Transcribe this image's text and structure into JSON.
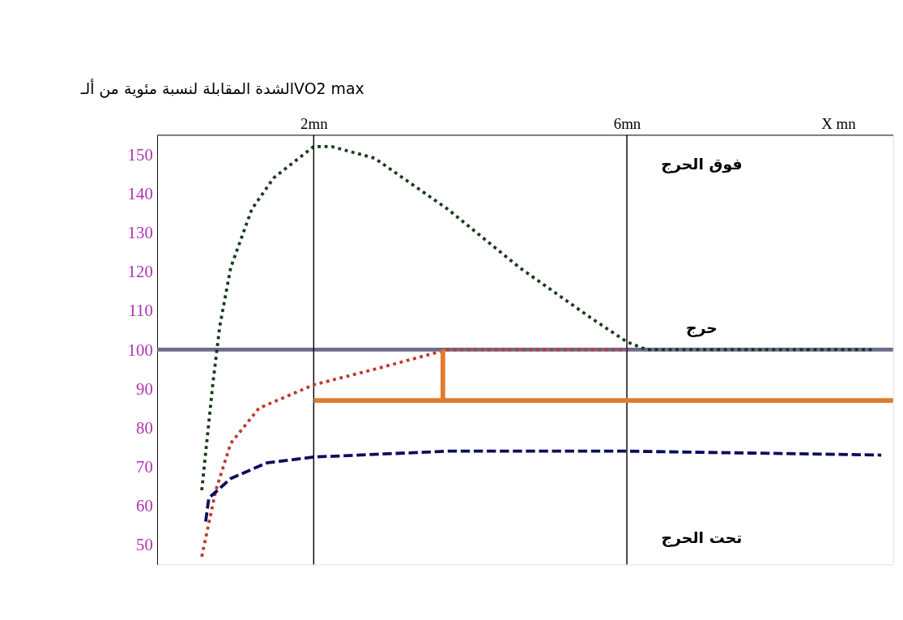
{
  "chart_data": {
    "type": "line",
    "ylabel": "الشدة المقابلة لنسبة مئوية من ألـVO2 max",
    "xlim": [
      0,
      9.4
    ],
    "xticks": [
      {
        "value": 2,
        "label": "2mn"
      },
      {
        "value": 6,
        "label": "6mn"
      },
      {
        "value": 8.7,
        "label": "X mn"
      }
    ],
    "ylim": [
      45,
      155
    ],
    "yticks": [
      50,
      60,
      70,
      80,
      90,
      100,
      110,
      120,
      130,
      140,
      150
    ],
    "grid": false,
    "series": [
      {
        "color": "#1a3a1a",
        "line_style": "dotted",
        "x": [
          0.57,
          0.71,
          0.8,
          0.94,
          1.21,
          1.49,
          2.0,
          2.23,
          2.78,
          3.71,
          4.63,
          5.55,
          6.0,
          6.25,
          7.4,
          9.15
        ],
        "values": [
          64,
          91,
          106,
          121,
          136,
          144,
          152,
          152,
          149,
          136,
          121,
          108,
          102,
          100,
          100,
          100
        ]
      },
      {
        "color": "#c0392b",
        "line_style": "dotted",
        "x": [
          0.57,
          0.75,
          0.94,
          1.3,
          2.0,
          2.78,
          3.71,
          6.0
        ],
        "values": [
          47,
          64,
          76,
          85,
          91,
          95,
          100,
          100
        ]
      },
      {
        "color": "#0d0d5e",
        "line_style": "dashed",
        "x": [
          0.62,
          0.66,
          0.94,
          1.4,
          2.0,
          3.71,
          6.0,
          9.25
        ],
        "values": [
          56,
          62,
          67,
          71,
          72.5,
          74,
          74,
          73
        ]
      },
      {
        "color": "#e07b2b",
        "line_style": "solid",
        "x": [
          2.0,
          9.4
        ],
        "values": [
          87,
          87
        ]
      },
      {
        "color": "#e07b2b",
        "line_style": "solid",
        "x": [
          3.65,
          3.65
        ],
        "values": [
          87,
          100
        ]
      }
    ],
    "ref_lines": [
      {
        "axis": "y",
        "value": 100,
        "color": "#6c6c8c"
      },
      {
        "axis": "x",
        "value": 2,
        "color": "#000000"
      },
      {
        "axis": "x",
        "value": 6,
        "color": "#000000"
      }
    ],
    "annotations": [
      "فوق الحرج",
      "حرج",
      "تحت الحرج"
    ]
  }
}
